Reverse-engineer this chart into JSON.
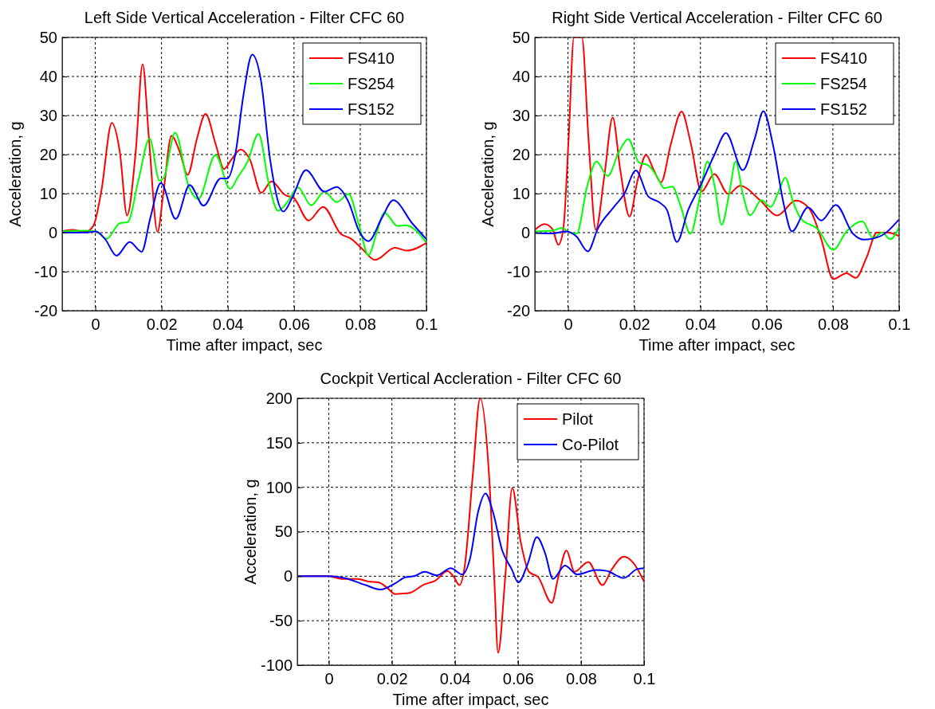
{
  "chart_data": [
    {
      "type": "line",
      "title": "Left Side Vertical Acceleration - Filter CFC 60",
      "xlabel": "Time after impact, sec",
      "ylabel": "Acceleration, g",
      "xlim": [
        -0.01,
        0.1
      ],
      "ylim": [
        -20,
        50
      ],
      "xticks": [
        0,
        0.02,
        0.04,
        0.06,
        0.08,
        0.1
      ],
      "yticks": [
        -20,
        -10,
        0,
        10,
        20,
        30,
        40,
        50
      ],
      "grid": true,
      "legend": "top right",
      "line_style": "solid",
      "series": [
        {
          "name": "FS410",
          "color": "#ff0000",
          "x": [
            -0.01,
            -0.007,
            -0.003,
            -0.0006,
            0.0018,
            0.005,
            0.0074,
            0.0096,
            0.0122,
            0.0143,
            0.0162,
            0.0188,
            0.0206,
            0.023,
            0.0255,
            0.0279,
            0.0307,
            0.0333,
            0.0363,
            0.0389,
            0.0411,
            0.0439,
            0.0467,
            0.0501,
            0.0532,
            0.0572,
            0.06,
            0.0644,
            0.0688,
            0.0741,
            0.0773,
            0.0805,
            0.0845,
            0.0905,
            0.0941,
            0.1
          ],
          "values": [
            0.3,
            0.7,
            0.2,
            1.7,
            10.5,
            28.1,
            20.7,
            4.4,
            20.7,
            43.1,
            24.1,
            0.2,
            10.5,
            24.8,
            20.7,
            14.8,
            24.1,
            30.4,
            22.8,
            16.3,
            18.7,
            21.3,
            18.7,
            10.2,
            13.1,
            9.7,
            8.8,
            3.1,
            6.6,
            -0.3,
            -1.6,
            -4.1,
            -7.0,
            -3.9,
            -4.6,
            -2.6
          ]
        },
        {
          "name": "FS254",
          "color": "#00ff00",
          "x": [
            -0.01,
            -0.003,
            0.0002,
            0.0034,
            0.0074,
            0.0098,
            0.013,
            0.0164,
            0.0194,
            0.0206,
            0.0241,
            0.0282,
            0.0311,
            0.0363,
            0.0407,
            0.0431,
            0.0459,
            0.0493,
            0.0524,
            0.0552,
            0.058,
            0.0612,
            0.0652,
            0.0692,
            0.0729,
            0.0765,
            0.0797,
            0.0825,
            0.0849,
            0.0873,
            0.0913,
            0.0937,
            0.1
          ],
          "values": [
            0.3,
            0.5,
            0.3,
            -1.6,
            2.4,
            2.7,
            13.3,
            24.1,
            13.3,
            13.9,
            25.6,
            11.9,
            8.6,
            19.9,
            11.2,
            14.3,
            18.0,
            25.3,
            12.6,
            5.6,
            7.8,
            11.6,
            7.0,
            10.5,
            7.8,
            9.9,
            1.7,
            -5.8,
            -0.3,
            5.1,
            1.7,
            1.9,
            -2.6
          ]
        },
        {
          "name": "FS152",
          "color": "#0000ff",
          "x": [
            -0.01,
            -0.003,
            0.0002,
            0.003,
            0.0064,
            0.0104,
            0.014,
            0.0166,
            0.0198,
            0.0243,
            0.0285,
            0.0327,
            0.0379,
            0.0399,
            0.0423,
            0.0447,
            0.0474,
            0.05,
            0.0528,
            0.0568,
            0.0596,
            0.0636,
            0.0692,
            0.0729,
            0.0765,
            0.0797,
            0.0825,
            0.0865,
            0.09,
            0.0957,
            0.1
          ],
          "values": [
            0,
            0,
            0.3,
            -1.7,
            -5.9,
            -2.4,
            -4.9,
            3.7,
            12.7,
            3.5,
            12.2,
            6.9,
            13.9,
            13.9,
            20.1,
            35.0,
            45.6,
            39.1,
            18.7,
            5.4,
            9.2,
            16.0,
            10.5,
            11.7,
            7.8,
            0.3,
            -2.2,
            3.7,
            8.3,
            2.4,
            -1.7
          ]
        }
      ]
    },
    {
      "type": "line",
      "title": "Right Side Vertical Acceleration - Filter CFC 60",
      "xlabel": "Time after impact, sec",
      "ylabel": "Acceleration, g",
      "xlim": [
        -0.01,
        0.1
      ],
      "ylim": [
        -20,
        50
      ],
      "xticks": [
        0,
        0.02,
        0.04,
        0.06,
        0.08,
        0.1
      ],
      "yticks": [
        -20,
        -10,
        0,
        10,
        20,
        30,
        40,
        50
      ],
      "grid": true,
      "legend": "top right",
      "line_style": "solid",
      "series": [
        {
          "name": "FS410",
          "color": "#ff0000",
          "x": [
            -0.01,
            -0.0071,
            -0.0047,
            -0.0029,
            -0.0014,
            0.0002,
            0.0018,
            0.0042,
            0.0062,
            0.0084,
            0.011,
            0.0135,
            0.0158,
            0.0186,
            0.021,
            0.0236,
            0.0259,
            0.0281,
            0.0311,
            0.0343,
            0.0371,
            0.0403,
            0.0442,
            0.0484,
            0.052,
            0.058,
            0.0632,
            0.0688,
            0.0729,
            0.0765,
            0.0801,
            0.0841,
            0.0869,
            0.0901,
            0.0933,
            0.0965,
            0.1
          ],
          "values": [
            0.7,
            2.2,
            0.9,
            -3.1,
            1.0,
            24.1,
            50,
            50,
            24.1,
            0.7,
            14.6,
            29.5,
            16.0,
            4.1,
            13.3,
            19.9,
            16.0,
            12.9,
            22.8,
            31.0,
            22.8,
            10.5,
            15.0,
            9.9,
            12.0,
            8.3,
            4.4,
            8.2,
            6.1,
            -1.7,
            -11.9,
            -10.4,
            -11.6,
            -6.5,
            0,
            0,
            -0.9
          ]
        },
        {
          "name": "FS254",
          "color": "#00ff00",
          "x": [
            -0.01,
            -0.0047,
            -0.0018,
            0.0002,
            0.0026,
            0.0058,
            0.0086,
            0.012,
            0.0154,
            0.0182,
            0.0214,
            0.0243,
            0.0267,
            0.0291,
            0.0315,
            0.0339,
            0.037,
            0.0395,
            0.0421,
            0.0443,
            0.0464,
            0.0488,
            0.0506,
            0.0528,
            0.055,
            0.0584,
            0.0612,
            0.0636,
            0.0656,
            0.068,
            0.0704,
            0.0753,
            0.0801,
            0.0841,
            0.0889,
            0.0921,
            0.0949,
            0.0973,
            0.1
          ],
          "values": [
            0.3,
            0.5,
            1.2,
            0.2,
            -0.3,
            11.9,
            18.2,
            14.5,
            20.7,
            24.0,
            18.0,
            17.2,
            14.6,
            11.4,
            11.8,
            7.1,
            -0.3,
            7.8,
            18.2,
            11.9,
            2.0,
            10.5,
            18.2,
            9.9,
            4.4,
            8.3,
            6.6,
            10.5,
            14.1,
            7.8,
            3.5,
            1.0,
            -4.4,
            0.3,
            2.9,
            -1.4,
            0,
            -1.7,
            1.4
          ]
        },
        {
          "name": "FS152",
          "color": "#0000ff",
          "x": [
            -0.01,
            -0.0047,
            -0.0006,
            0.0026,
            0.006,
            0.009,
            0.0138,
            0.017,
            0.0205,
            0.0243,
            0.0275,
            0.0299,
            0.0329,
            0.0363,
            0.0403,
            0.0443,
            0.0477,
            0.0528,
            0.0564,
            0.059,
            0.062,
            0.0652,
            0.0676,
            0.0725,
            0.0765,
            0.0809,
            0.0861,
            0.0893,
            0.0941,
            0.1
          ],
          "values": [
            -0.1,
            -0.2,
            0.3,
            -1.0,
            -4.8,
            1.0,
            6.5,
            9.9,
            15.9,
            9.2,
            7.8,
            5.8,
            -2.4,
            5.8,
            12.6,
            20.1,
            25.5,
            16.0,
            24.1,
            31.1,
            22.1,
            7.1,
            0.3,
            6.5,
            3.1,
            7.1,
            -0.3,
            -1.8,
            -1.0,
            3.4
          ]
        }
      ]
    },
    {
      "type": "line",
      "title": "Cockpit Vertical Accleration - Filter CFC 60",
      "xlabel": "Time after impact, sec",
      "ylabel": "Acceleration, g",
      "xlim": [
        -0.01,
        0.1
      ],
      "ylim": [
        -100,
        200
      ],
      "xticks": [
        0,
        0.02,
        0.04,
        0.06,
        0.08,
        0.1
      ],
      "yticks": [
        -100,
        -50,
        0,
        50,
        100,
        150,
        200
      ],
      "grid": true,
      "legend": "top right",
      "line_style": "solid",
      "series": [
        {
          "name": "Pilot",
          "color": "#ff0000",
          "x": [
            -0.01,
            0,
            0.0041,
            0.0092,
            0.0126,
            0.0159,
            0.0185,
            0.021,
            0.0253,
            0.0304,
            0.0338,
            0.0376,
            0.0397,
            0.0414,
            0.0431,
            0.0457,
            0.048,
            0.0508,
            0.0525,
            0.0537,
            0.0559,
            0.0582,
            0.0609,
            0.0635,
            0.0664,
            0.0707,
            0.0728,
            0.0754,
            0.0779,
            0.0823,
            0.0868,
            0.0898,
            0.0936,
            0.0966,
            0.1
          ],
          "values": [
            0,
            0,
            -3,
            -3,
            -6,
            -7,
            -13,
            -20,
            -19,
            -9,
            -5,
            6,
            -1,
            -10,
            11,
            115,
            200,
            115,
            -4,
            -86,
            -4,
            99,
            38,
            5,
            -1,
            -30,
            -1,
            29,
            5,
            16,
            -10,
            8,
            22,
            15,
            -6
          ]
        },
        {
          "name": "Co-Pilot",
          "color": "#0000ff",
          "x": [
            -0.01,
            0,
            0.0049,
            0.0117,
            0.0164,
            0.021,
            0.0244,
            0.027,
            0.0304,
            0.0342,
            0.0387,
            0.0423,
            0.0448,
            0.0474,
            0.0497,
            0.052,
            0.055,
            0.058,
            0.0601,
            0.0631,
            0.066,
            0.0686,
            0.0711,
            0.0749,
            0.0788,
            0.0847,
            0.0881,
            0.0936,
            0.0978,
            0.1
          ],
          "values": [
            0,
            0,
            -2,
            -10,
            -15,
            -8,
            -1,
            0,
            5,
            1,
            9,
            2,
            20,
            73,
            93,
            73,
            29,
            8,
            -7,
            14,
            44,
            26,
            -3,
            12,
            2,
            7,
            6,
            -2,
            8,
            9
          ]
        }
      ]
    }
  ]
}
